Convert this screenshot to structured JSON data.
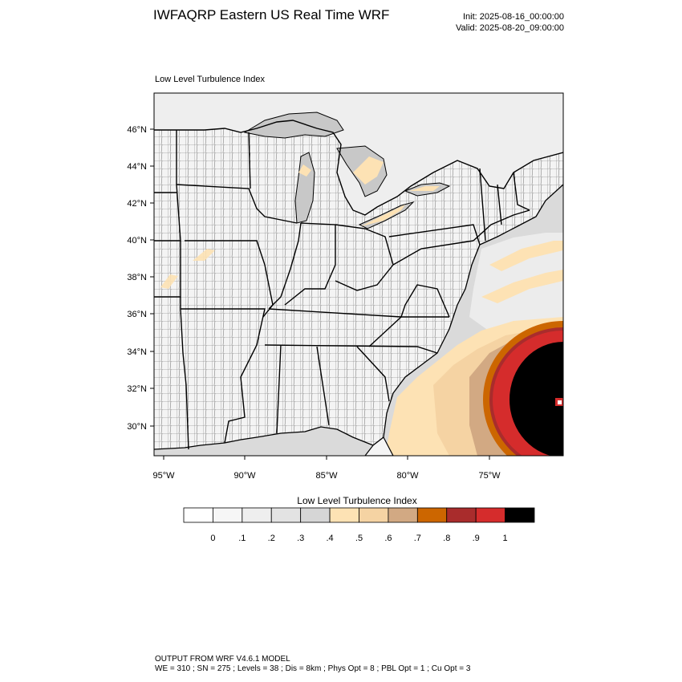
{
  "header": {
    "title": "IWFAQRP Eastern US Real Time WRF",
    "init": "Init: 2025-08-16_00:00:00",
    "valid": "Valid: 2025-08-20_09:00:00"
  },
  "map": {
    "subtitle": "Low Level Turbulence Index",
    "lat_labels": [
      "46°N",
      "44°N",
      "42°N",
      "40°N",
      "38°N",
      "36°N",
      "34°N",
      "32°N",
      "30°N"
    ],
    "lon_labels": [
      "95°W",
      "90°W",
      "85°W",
      "80°W",
      "75°W"
    ],
    "colors": {
      "land": "#f7f7f7",
      "sea": "#d9d9d9",
      "lakes": "#c8c8c8",
      "canada": "#f0f0f0"
    }
  },
  "colorbar": {
    "title": "Low Level Turbulence Index",
    "colors": [
      "#ffffff",
      "#f6f6f6",
      "#eeeeee",
      "#e3e3e3",
      "#d6d6d6",
      "#fde2b4",
      "#f5d3a3",
      "#d2a983",
      "#cc6600",
      "#a92c2c",
      "#d52c2c",
      "#000000"
    ],
    "labels": [
      "0",
      ".1",
      ".2",
      ".3",
      ".4",
      ".5",
      ".6",
      ".7",
      ".8",
      ".9",
      "1"
    ]
  },
  "footer": {
    "line1": "OUTPUT FROM WRF V4.6.1 MODEL",
    "line2": "WE = 310 ; SN = 275 ; Levels = 38 ; Dis = 8km ; Phys Opt = 8 ; PBL Opt = 1 ; Cu Opt = 3"
  }
}
